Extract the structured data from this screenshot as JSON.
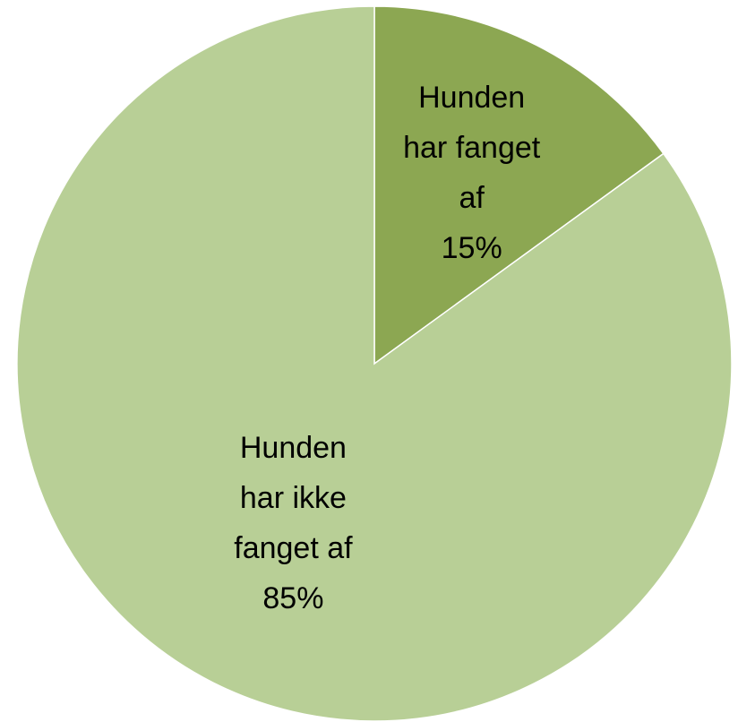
{
  "chart_data": {
    "type": "pie",
    "categories": [
      "Hunden har fanget af",
      "Hunden har ikke fanget af"
    ],
    "values": [
      15,
      85
    ],
    "value_labels": [
      "15%",
      "85%"
    ],
    "colors": [
      "#8ca752",
      "#b8cf96"
    ]
  }
}
